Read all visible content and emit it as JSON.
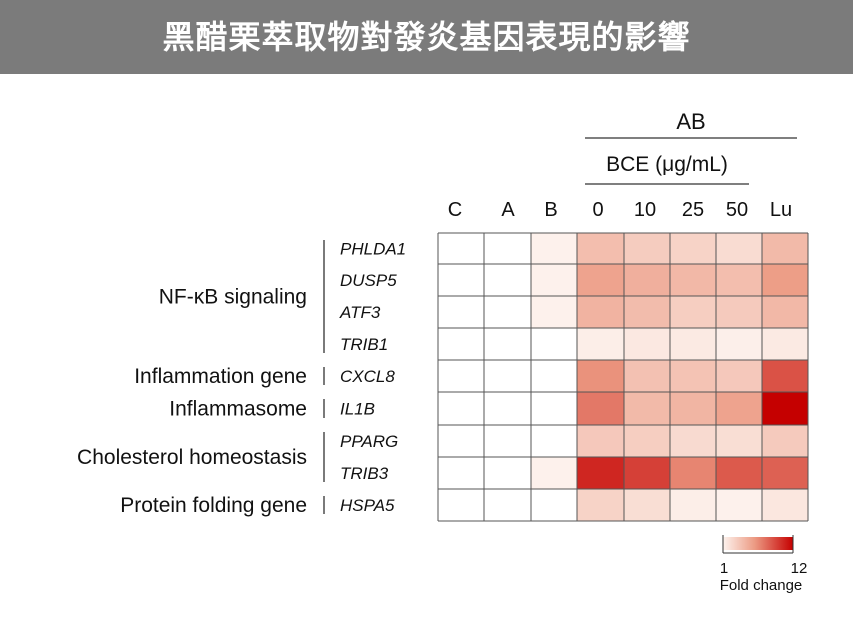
{
  "page": {
    "title": "黑醋栗萃取物對發炎基因表現的影響"
  },
  "chart_data": {
    "type": "heatmap",
    "columns": [
      "C",
      "A",
      "B",
      "0",
      "10",
      "25",
      "50",
      "Lu"
    ],
    "column_groups": {
      "outer_label": "AB",
      "outer_columns": [
        "0",
        "10",
        "25",
        "50",
        "Lu"
      ],
      "inner_label": "BCE (μg/mL)",
      "inner_columns": [
        "0",
        "10",
        "25",
        "50"
      ]
    },
    "rows": [
      "PHLDA1",
      "DUSP5",
      "ATF3",
      "TRIB1",
      "CXCL8",
      "IL1B",
      "PPARG",
      "TRIB3",
      "HSPA5"
    ],
    "row_groups": [
      {
        "label": "NF-κB signaling",
        "rows": [
          "PHLDA1",
          "DUSP5",
          "ATF3",
          "TRIB1"
        ]
      },
      {
        "label": "Inflammation gene",
        "rows": [
          "CXCL8"
        ]
      },
      {
        "label": "Inflammasome",
        "rows": [
          "IL1B"
        ]
      },
      {
        "label": "Cholesterol homeostasis",
        "rows": [
          "PPARG",
          "TRIB3"
        ]
      },
      {
        "label": "Protein folding gene",
        "rows": [
          "HSPA5"
        ]
      }
    ],
    "values": [
      [
        1,
        1,
        1.1,
        4,
        3.2,
        2.8,
        2.3,
        4.2
      ],
      [
        1,
        1,
        1.1,
        5.5,
        4.8,
        4.3,
        4,
        5.8
      ],
      [
        1,
        1,
        1.1,
        4.6,
        4.1,
        3.1,
        3.3,
        4.3
      ],
      [
        1,
        1,
        1,
        1.3,
        1.6,
        1.5,
        1.2,
        1.5
      ],
      [
        1,
        1,
        1,
        6.3,
        3.8,
        3.7,
        3.4,
        8.8
      ],
      [
        1,
        1,
        1,
        7.3,
        4.2,
        4.5,
        5.5,
        12
      ],
      [
        1,
        1,
        1,
        3.4,
        3.1,
        2.4,
        2.2,
        3.3
      ],
      [
        1,
        1,
        1.1,
        10.5,
        9.5,
        6.8,
        8.5,
        8.2
      ],
      [
        1,
        1,
        1,
        2.8,
        2.2,
        1.3,
        1.1,
        1.7
      ]
    ],
    "colorbar": {
      "min": 1,
      "max": 12,
      "min_label": "1",
      "max_label": "12",
      "label": "Fold change",
      "low_color": "#fdf3ee",
      "high_color": "#c50000"
    },
    "colors": {
      "grid_line": "#555555",
      "low": "#fdf3ee",
      "mid": "#ec9b84",
      "high": "#c50000"
    }
  }
}
